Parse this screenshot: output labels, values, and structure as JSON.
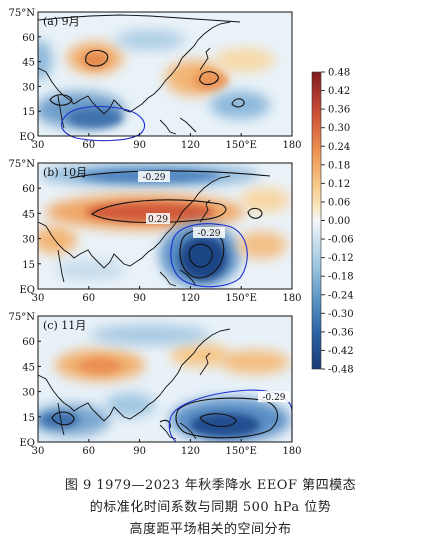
{
  "chart_data": [
    {
      "type": "heatmap",
      "panel_label": "(a) 9月",
      "x_ticks": [
        "30",
        "60",
        "90",
        "120",
        "150°E",
        "180"
      ],
      "y_ticks": [
        "75°N",
        "60",
        "45",
        "30",
        "15",
        "EQ"
      ],
      "x_values": [
        30,
        60,
        90,
        120,
        150,
        180
      ],
      "y_values": [
        75,
        60,
        45,
        30,
        15,
        0
      ],
      "contour_labels": []
    },
    {
      "type": "heatmap",
      "panel_label": "(b) 10月",
      "x_ticks": [
        "30",
        "60",
        "90",
        "120",
        "150°E",
        "180"
      ],
      "y_ticks": [
        "75°N",
        "60",
        "45",
        "30",
        "15",
        "EQ"
      ],
      "x_values": [
        30,
        60,
        90,
        120,
        150,
        180
      ],
      "y_values": [
        75,
        60,
        45,
        30,
        15,
        0
      ],
      "contour_labels": [
        {
          "text": "-0.29",
          "lon": 105,
          "lat": 65
        },
        {
          "text": "0.29",
          "lon": 98,
          "lat": 42
        },
        {
          "text": "-0.29",
          "lon": 126,
          "lat": 32
        }
      ]
    },
    {
      "type": "heatmap",
      "panel_label": "(c) 11月",
      "x_ticks": [
        "30",
        "60",
        "90",
        "120",
        "150°E",
        "180"
      ],
      "y_ticks": [
        "75°N",
        "60",
        "45",
        "30",
        "15",
        "EQ"
      ],
      "x_values": [
        30,
        60,
        90,
        120,
        150,
        180
      ],
      "y_values": [
        75,
        60,
        45,
        30,
        15,
        0
      ],
      "contour_labels": [
        {
          "text": "-0.29",
          "lon": 162,
          "lat": 25
        }
      ]
    }
  ],
  "colorbar": {
    "ticks": [
      "0.48",
      "0.42",
      "0.36",
      "0.30",
      "0.24",
      "0.18",
      "0.12",
      "0.06",
      "0.00",
      "-0.06",
      "-0.12",
      "-0.18",
      "-0.24",
      "-0.30",
      "-0.36",
      "-0.42",
      "-0.48"
    ],
    "values": [
      0.48,
      0.42,
      0.36,
      0.3,
      0.24,
      0.18,
      0.12,
      0.06,
      0.0,
      -0.06,
      -0.12,
      -0.18,
      -0.24,
      -0.3,
      -0.36,
      -0.42,
      -0.48
    ],
    "colors": [
      "#7f1d1d",
      "#b43a2f",
      "#d9643e",
      "#ee9a57",
      "#f6c88a",
      "#fbe9c4",
      "#f4f7fa",
      "#cfe2ef",
      "#98c4df",
      "#5d97c6",
      "#2c62a3",
      "#1b3b74"
    ]
  },
  "caption": {
    "line1": "图 9   1979—2023 年秋季降水 EEOF 第四模态",
    "line2": "的标准化时间系数与同期 500 hPa 位势",
    "line3": "高度距平场相关的空间分布"
  }
}
